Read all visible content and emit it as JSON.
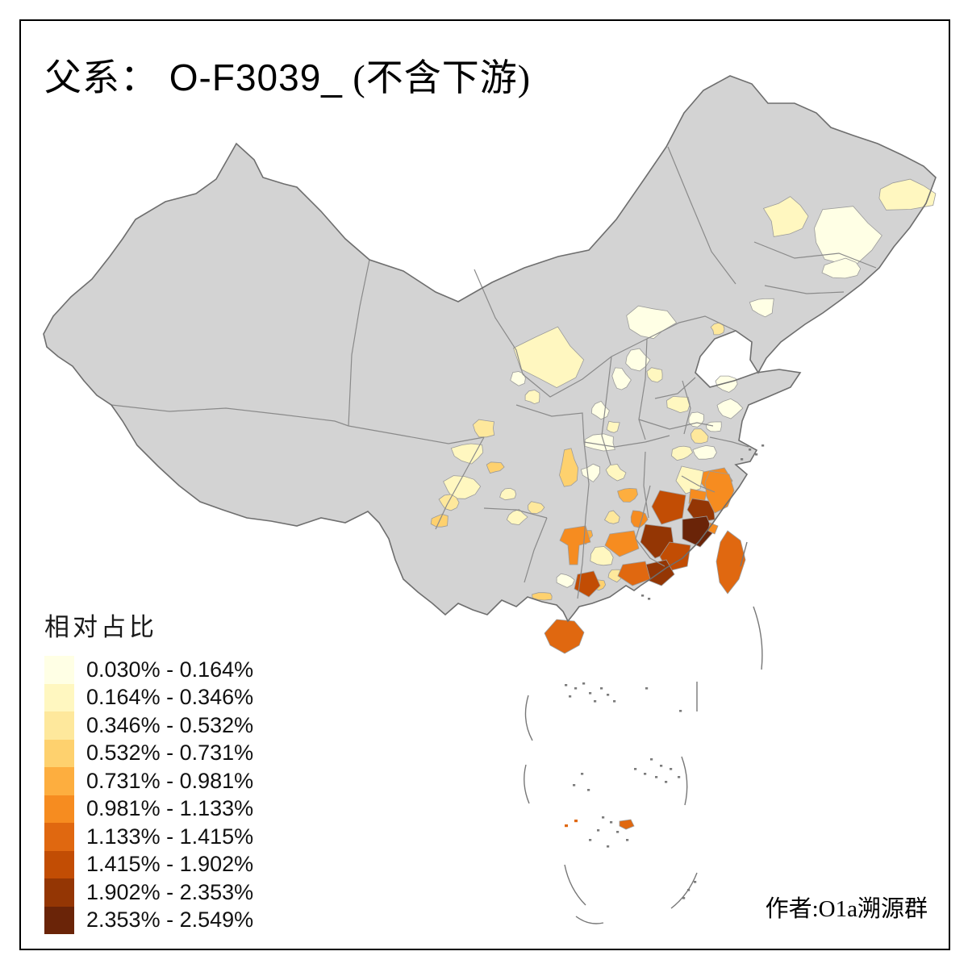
{
  "title": {
    "prefix": "父系：",
    "code": " O-F3039_",
    "suffix": " (不含下游)"
  },
  "legend": {
    "title": "相对占比",
    "classes": [
      {
        "label": "0.030% - 0.164%",
        "color": "#FFFFE5"
      },
      {
        "label": "0.164% - 0.346%",
        "color": "#FFF7C0"
      },
      {
        "label": "0.346% - 0.532%",
        "color": "#FEE89C"
      },
      {
        "label": "0.532% - 0.731%",
        "color": "#FED16E"
      },
      {
        "label": "0.731% - 0.981%",
        "color": "#FDAE3F"
      },
      {
        "label": "0.981% - 1.133%",
        "color": "#F68C20"
      },
      {
        "label": "1.133% - 1.415%",
        "color": "#E06810"
      },
      {
        "label": "1.415% - 1.902%",
        "color": "#C24D04"
      },
      {
        "label": "1.902% - 2.353%",
        "color": "#943604"
      },
      {
        "label": "2.353% - 2.549%",
        "color": "#6A2408"
      }
    ]
  },
  "attribution": "作者:O1a溯源群",
  "map": {
    "base_fill": "#D3D3D3",
    "outline_stroke": "#6E6E6E",
    "province_stroke": "#8A8A8A",
    "patch_stroke": "#9B9B9B",
    "island_color": "#7C7C7C",
    "dash_line_color": "#777777",
    "sea": "#FFFFFF"
  }
}
